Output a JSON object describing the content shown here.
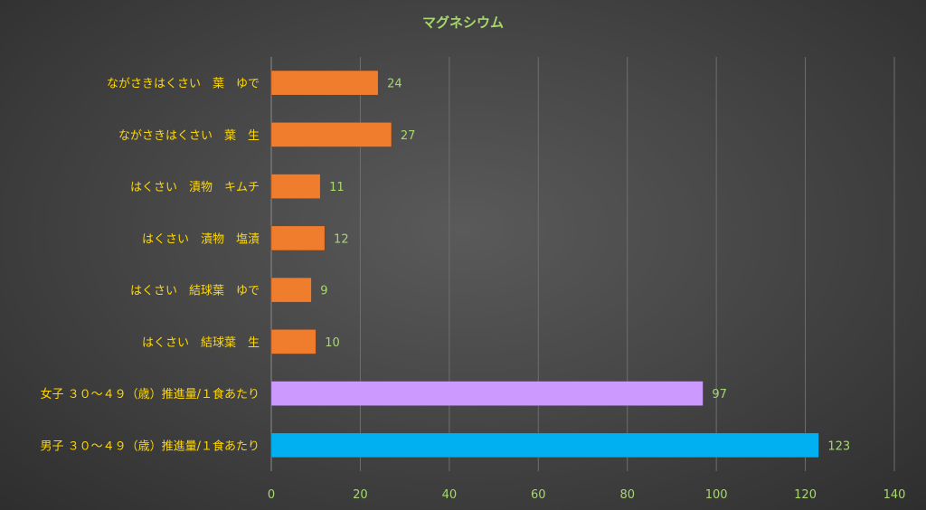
{
  "chart_data": {
    "type": "bar",
    "orientation": "horizontal",
    "title": "マグネシウム",
    "categories": [
      "ながさきはくさい　葉　ゆで",
      "ながさきはくさい　葉　生",
      "はくさい　漬物　キムチ",
      "はくさい　漬物　塩漬",
      "はくさい　結球葉　ゆで",
      "はくさい　結球葉　生",
      "女子 ３０～４９（歳）推進量/１食あたり",
      "男子 ３０～４９（歳）推進量/１食あたり"
    ],
    "values": [
      24,
      27,
      11,
      12,
      9,
      10,
      97,
      123
    ],
    "bar_colors": [
      "#f07c2e",
      "#f07c2e",
      "#f07c2e",
      "#f07c2e",
      "#f07c2e",
      "#f07c2e",
      "#cc99ff",
      "#00b0f0"
    ],
    "xlim": [
      0,
      140
    ],
    "xticks": [
      0,
      20,
      40,
      60,
      80,
      100,
      120,
      140
    ],
    "grid": true,
    "xlabel": "",
    "ylabel": ""
  }
}
